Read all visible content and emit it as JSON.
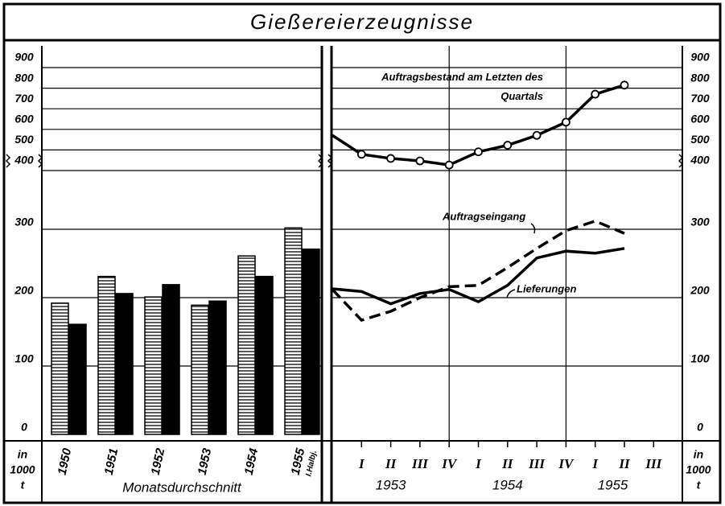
{
  "title": "Gießereierzeugnisse",
  "y_unit": [
    "in",
    "1000",
    "t"
  ],
  "chart_data": [
    {
      "type": "bar",
      "categories": [
        "1950",
        "1951",
        "1952",
        "1953",
        "1954",
        "1955"
      ],
      "category_note": "I.Halbj.",
      "x_label": "Monatsdurchschnitt",
      "ylim": [
        0,
        400
      ],
      "yticks": [
        0,
        100,
        200,
        300
      ],
      "y2lim": [
        400,
        900
      ],
      "y2ticks": [
        400,
        500,
        600,
        700,
        800,
        900
      ],
      "grid": true,
      "series": [
        {
          "color": "#000000",
          "pattern": "hatched",
          "values": [
            192,
            231,
            201,
            189,
            261,
            302
          ]
        },
        {
          "color": "#000000",
          "pattern": "solid",
          "values": [
            161,
            206,
            219,
            195,
            231,
            271
          ]
        }
      ]
    },
    {
      "type": "line",
      "categories": [
        null,
        "I",
        "II",
        "III",
        "IV",
        "I",
        "II",
        "III",
        "IV",
        "I",
        "II",
        "III"
      ],
      "year_labels": [
        {
          "label": "1953",
          "at": 2
        },
        {
          "label": "1954",
          "at": 6
        },
        {
          "label": "1955",
          "at": 9.6
        }
      ],
      "ylim": [
        0,
        400
      ],
      "yticks": [
        0,
        100,
        200,
        300
      ],
      "y2lim": [
        400,
        900
      ],
      "y2ticks": [
        400,
        500,
        600,
        700,
        800,
        900
      ],
      "grid": true,
      "vgrid_at": [
        4,
        8
      ],
      "series": [
        {
          "name": "Auftragsbestand am Letzten des Quartals",
          "color": "#000000",
          "axis": "y2",
          "dash": false,
          "markers": true,
          "values": [
            524,
            432,
            412,
            400,
            380,
            444,
            476,
            524,
            588,
            724,
            768,
            null
          ]
        },
        {
          "name": "Auftragseingang",
          "color": "#000000",
          "dash": true,
          "markers": false,
          "values": [
            212,
            167,
            180,
            200,
            216,
            218,
            244,
            272,
            298,
            312,
            294,
            null
          ]
        },
        {
          "name": "Lieferungen",
          "color": "#000000",
          "dash": false,
          "markers": false,
          "values": [
            213,
            209,
            191,
            206,
            212,
            194,
            218,
            258,
            268,
            265,
            272,
            null
          ]
        }
      ]
    }
  ]
}
